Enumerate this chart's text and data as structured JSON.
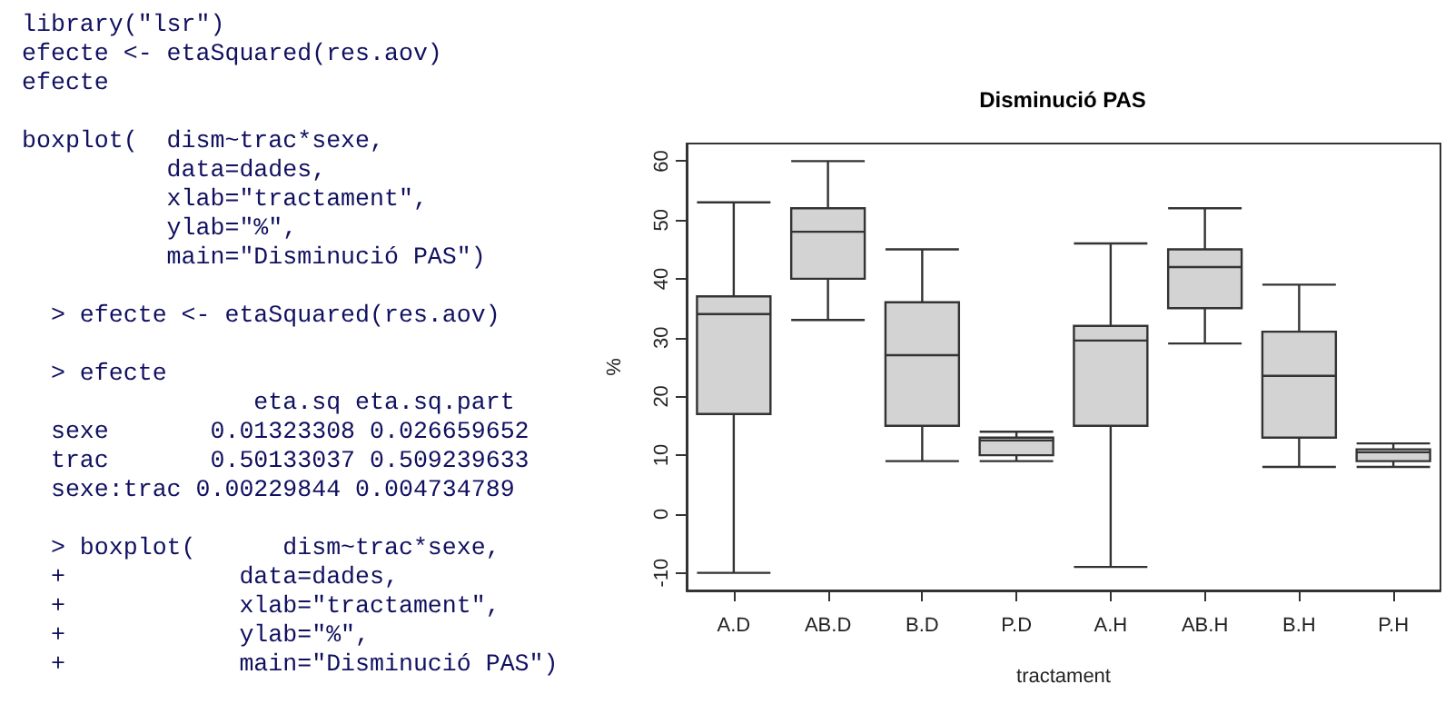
{
  "chart_data": [
    {
      "type": "other",
      "annotations": [
        "library(\"lsr\")\nefecte <- etaSquared(res.aov)\nefecte",
        "boxplot(  dism~trac*sexe,\n          data=dades,\n          xlab=\"tractament\",\n          ylab=\"%\",\n          main=\"Disminució PAS\")",
        "  > efecte <- etaSquared(res.aov)",
        "  > efecte\n                eta.sq eta.sq.part\n  sexe       0.01323308 0.026659652\n  trac       0.50133037 0.509239633\n  sexe:trac 0.00229844 0.004734789",
        "  > boxplot(      dism~trac*sexe,\n  +            data=dades,\n  +            xlab=\"tractament\",\n  +            ylab=\"%\",\n  +            main=\"Disminució PAS\")"
      ]
    },
    {
      "type": "box",
      "title": "Disminució PAS",
      "xlabel": "tractament",
      "ylabel": "%",
      "categories": [
        "A.D",
        "AB.D",
        "B.D",
        "P.D",
        "A.H",
        "AB.H",
        "B.H",
        "P.H"
      ],
      "boxes": [
        {
          "low": -10,
          "q1": 17,
          "median": 34,
          "q3": 37,
          "high": 53
        },
        {
          "low": 33,
          "q1": 40,
          "median": 48,
          "q3": 52,
          "high": 60
        },
        {
          "low": 9,
          "q1": 15,
          "median": 27,
          "q3": 36,
          "high": 45
        },
        {
          "low": 9,
          "q1": 10,
          "median": 12.5,
          "q3": 13,
          "high": 14
        },
        {
          "low": -9,
          "q1": 15,
          "median": 29.5,
          "q3": 32,
          "high": 46
        },
        {
          "low": 29,
          "q1": 35,
          "median": 42,
          "q3": 45,
          "high": 52
        },
        {
          "low": 8,
          "q1": 13,
          "median": 23.5,
          "q3": 31,
          "high": 39
        },
        {
          "low": 8,
          "q1": 9,
          "median": 10.5,
          "q3": 11,
          "high": 12
        }
      ],
      "ylim": [
        -13,
        63
      ],
      "yticks": [
        -10,
        0,
        10,
        20,
        30,
        40,
        50,
        60
      ]
    }
  ]
}
